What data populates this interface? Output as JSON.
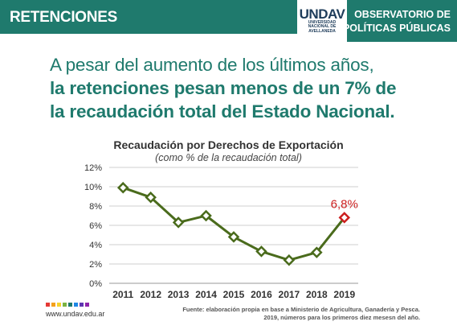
{
  "header": {
    "section_label": "RETENCIONES",
    "observatory_line1": "OBSERVATORIO DE",
    "observatory_line2": "POLÍTICAS PÚBLICAS",
    "logo_mark": "UNDAV",
    "logo_line1": "UNIVERSIDAD",
    "logo_line2": "NACIONAL DE",
    "logo_line3": "AVELLANEDA"
  },
  "headline": {
    "line1": "A pesar del aumento de los últimos años,",
    "line2": "la retenciones pesan menos de un 7% de",
    "line3": "la recaudación total del Estado Nacional."
  },
  "footer": {
    "website": "www.undav.edu.ar",
    "source_line1": "Fuente: elaboración propia en base a Ministerio de Agricultura, Ganadería y Pesca.",
    "source_line2": "2019, números para los primeros diez mesesn del año.",
    "dot_colors": [
      "#e53935",
      "#f4a11d",
      "#f6d32d",
      "#7cb342",
      "#1f7a6d",
      "#1e88e5",
      "#5e35b1",
      "#8e24aa"
    ]
  },
  "colors": {
    "brand_green": "#1f7a6d",
    "series_line": "#4a6b1c",
    "highlight": "#cc1f1f",
    "grid": "#cfcfcf"
  },
  "chart_data": {
    "type": "line",
    "title": "Recaudación por Derechos de Exportación",
    "subtitle": "(como % de la recaudación total)",
    "x": [
      "2011",
      "2012",
      "2013",
      "2014",
      "2015",
      "2016",
      "2017",
      "2018",
      "2019"
    ],
    "series": [
      {
        "values": [
          9.9,
          8.9,
          6.3,
          7.0,
          4.8,
          3.3,
          2.4,
          3.2,
          6.8
        ]
      }
    ],
    "y_ticks": [
      "0%",
      "2%",
      "4%",
      "6%",
      "8%",
      "10%",
      "12%"
    ],
    "ylim": [
      0,
      12
    ],
    "grid": true,
    "annotations": [
      {
        "x": "2019",
        "text": "6,8%"
      }
    ]
  }
}
